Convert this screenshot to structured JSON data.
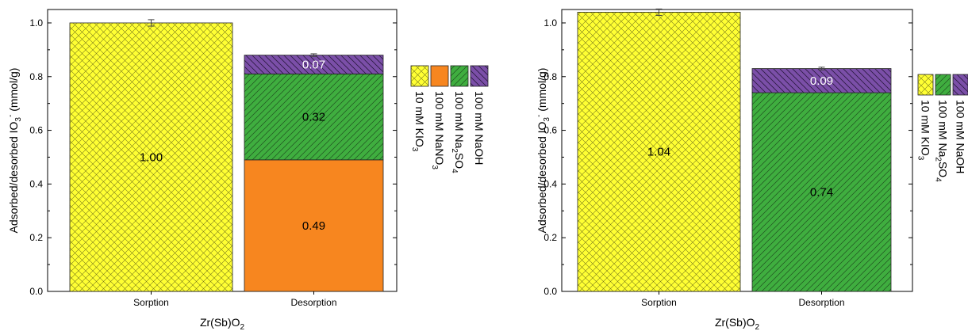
{
  "chart_data": [
    {
      "type": "bar",
      "stacked": true,
      "xlabel": "Zr(Sb)O",
      "xlabel_sub": "2",
      "ylabel": "Adsorbed/desorbed IO",
      "ylabel_sub": "3",
      "ylabel_sup": "-",
      "ylabel_suffix": " (mmol/g)",
      "ylim": [
        0,
        1.05
      ],
      "yticks": [
        "0.0",
        "0.2",
        "0.4",
        "0.6",
        "0.8",
        "1.0"
      ],
      "categories": [
        "Sorption",
        "Desorption"
      ],
      "series": [
        {
          "name": "10 mM KIO",
          "name_sub": "3",
          "color": "#ffff33",
          "pattern": "cross",
          "values": [
            1.0,
            0
          ],
          "labels": [
            "1.00",
            ""
          ]
        },
        {
          "name": "100 mM NaNO",
          "name_sub": "3",
          "color": "#f7861f",
          "pattern": "none",
          "values": [
            0,
            0.49
          ],
          "labels": [
            "",
            "0.49"
          ]
        },
        {
          "name": "100 mM Na",
          "name_sub": "2",
          "name_tail": "SO",
          "name_sub2": "4",
          "color": "#3fae3f",
          "pattern": "diag",
          "values": [
            0,
            0.32
          ],
          "labels": [
            "",
            "0.32"
          ]
        },
        {
          "name": "100 mM NaOH",
          "color": "#7b4fa8",
          "pattern": "antidiag",
          "values": [
            0,
            0.07
          ],
          "labels": [
            "",
            "0.07"
          ]
        }
      ],
      "error_bars": [
        0.012,
        0.005
      ]
    },
    {
      "type": "bar",
      "stacked": true,
      "xlabel": "Zr(Sb)O",
      "xlabel_sub": "2",
      "ylabel": "Adsorbed/desorbed IO",
      "ylabel_sub": "3",
      "ylabel_sup": "-",
      "ylabel_suffix": " (mmol/g)",
      "ylim": [
        0,
        1.05
      ],
      "yticks": [
        "0.0",
        "0.2",
        "0.4",
        "0.6",
        "0.8",
        "1.0"
      ],
      "categories": [
        "Sorption",
        "Desorption"
      ],
      "series": [
        {
          "name": "10 mM KIO",
          "name_sub": "3",
          "color": "#ffff33",
          "pattern": "cross",
          "values": [
            1.04,
            0
          ],
          "labels": [
            "1.04",
            ""
          ]
        },
        {
          "name": "100 mM Na",
          "name_sub": "2",
          "name_tail": "SO",
          "name_sub2": "4",
          "color": "#3fae3f",
          "pattern": "diag",
          "values": [
            0,
            0.74
          ],
          "labels": [
            "",
            "0.74"
          ]
        },
        {
          "name": "100 mM NaOH",
          "color": "#7b4fa8",
          "pattern": "antidiag",
          "values": [
            0,
            0.09
          ],
          "labels": [
            "",
            "0.09"
          ]
        }
      ],
      "error_bars": [
        0.012,
        0.005
      ]
    }
  ]
}
